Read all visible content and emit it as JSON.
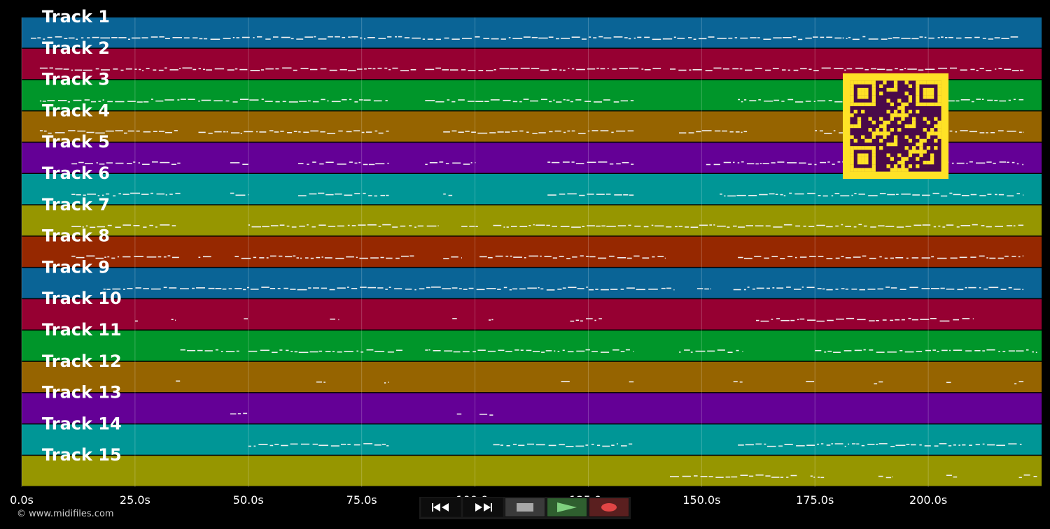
{
  "window": {
    "background": "#000000"
  },
  "timeline": {
    "min_seconds": 0,
    "max_seconds": 225,
    "ticks": [
      {
        "seconds": 0,
        "label": "0.0s"
      },
      {
        "seconds": 25,
        "label": "25.0s"
      },
      {
        "seconds": 50,
        "label": "50.0s"
      },
      {
        "seconds": 75,
        "label": "75.0s"
      },
      {
        "seconds": 100,
        "label": "100.0s"
      },
      {
        "seconds": 125,
        "label": "125.0s"
      },
      {
        "seconds": 150,
        "label": "150.0s"
      },
      {
        "seconds": 175,
        "label": "175.0s"
      },
      {
        "seconds": 200,
        "label": "200.0s"
      }
    ]
  },
  "tracks": [
    {
      "label": "Track 1",
      "color": "#0a6496",
      "segments": [
        [
          2,
          220
        ]
      ]
    },
    {
      "label": "Track 2",
      "color": "#960032",
      "segments": [
        [
          4,
          87
        ],
        [
          89,
          141
        ],
        [
          143,
          221
        ]
      ]
    },
    {
      "label": "Track 3",
      "color": "#00962a",
      "segments": [
        [
          4,
          81
        ],
        [
          89,
          135
        ],
        [
          158,
          221
        ]
      ]
    },
    {
      "label": "Track 4",
      "color": "#966400",
      "segments": [
        [
          4,
          35
        ],
        [
          39,
          81
        ],
        [
          93,
          135
        ],
        [
          145,
          160
        ],
        [
          175,
          221
        ]
      ]
    },
    {
      "label": "Track 5",
      "color": "#640096",
      "segments": [
        [
          11,
          35
        ],
        [
          46,
          50
        ],
        [
          61,
          81
        ],
        [
          89,
          100
        ],
        [
          116,
          135
        ],
        [
          151,
          221
        ]
      ]
    },
    {
      "label": "Track 6",
      "color": "#009696",
      "segments": [
        [
          11,
          35
        ],
        [
          46,
          50
        ],
        [
          61,
          81
        ],
        [
          93,
          95
        ],
        [
          116,
          135
        ],
        [
          154,
          221
        ]
      ]
    },
    {
      "label": "Track 7",
      "color": "#969600",
      "segments": [
        [
          11,
          34
        ],
        [
          50,
          92
        ],
        [
          97,
          101
        ],
        [
          104,
          221
        ]
      ]
    },
    {
      "label": "Track 8",
      "color": "#962800",
      "segments": [
        [
          11,
          35
        ],
        [
          39,
          42
        ],
        [
          47,
          87
        ],
        [
          93,
          97
        ],
        [
          101,
          142
        ],
        [
          158,
          221
        ]
      ]
    },
    {
      "label": "Track 9",
      "color": "#0a6496",
      "segments": [
        [
          18,
          144
        ],
        [
          149,
          152
        ],
        [
          157,
          221
        ]
      ]
    },
    {
      "label": "Track 10",
      "color": "#960032",
      "segments": [
        [
          25,
          26
        ],
        [
          33,
          34
        ],
        [
          49,
          50
        ],
        [
          68,
          70
        ],
        [
          95,
          96
        ],
        [
          103,
          104
        ],
        [
          121,
          128
        ],
        [
          162,
          210
        ]
      ]
    },
    {
      "label": "Track 11",
      "color": "#00962a",
      "segments": [
        [
          35,
          48
        ],
        [
          50,
          84
        ],
        [
          89,
          135
        ],
        [
          145,
          159
        ],
        [
          175,
          224
        ]
      ]
    },
    {
      "label": "Track 12",
      "color": "#966400",
      "segments": [
        [
          34,
          35
        ],
        [
          65,
          67
        ],
        [
          80,
          81
        ],
        [
          119,
          121
        ],
        [
          134,
          135
        ],
        [
          157,
          159
        ],
        [
          173,
          175
        ],
        [
          188,
          190
        ],
        [
          204,
          205
        ],
        [
          219,
          221
        ]
      ]
    },
    {
      "label": "Track 13",
      "color": "#640096",
      "segments": [
        [
          46,
          50
        ],
        [
          96,
          97
        ],
        [
          101,
          104
        ]
      ]
    },
    {
      "label": "Track 14",
      "color": "#009696",
      "segments": [
        [
          50,
          81
        ],
        [
          104,
          135
        ],
        [
          158,
          221
        ]
      ]
    },
    {
      "label": "Track 15",
      "color": "#969600",
      "segments": [
        [
          143,
          171
        ],
        [
          174,
          177
        ],
        [
          189,
          192
        ],
        [
          204,
          207
        ],
        [
          220,
          224
        ]
      ]
    }
  ],
  "footer": {
    "copyright": "© www.midifiles.com"
  },
  "transport": {
    "buttons": [
      {
        "name": "rewind-button",
        "icon": "rewind-icon",
        "cls": "rew"
      },
      {
        "name": "fast-forward-button",
        "icon": "fast-forward-icon",
        "cls": "ff"
      },
      {
        "name": "stop-button",
        "icon": "stop-icon",
        "cls": "stop"
      },
      {
        "name": "play-button",
        "icon": "play-icon",
        "cls": "play"
      },
      {
        "name": "record-button",
        "icon": "record-icon",
        "cls": "rec"
      }
    ]
  },
  "qr": {
    "icon": "qr-code-icon",
    "fg": "#ffe226",
    "bg": "#4a0a4a"
  }
}
